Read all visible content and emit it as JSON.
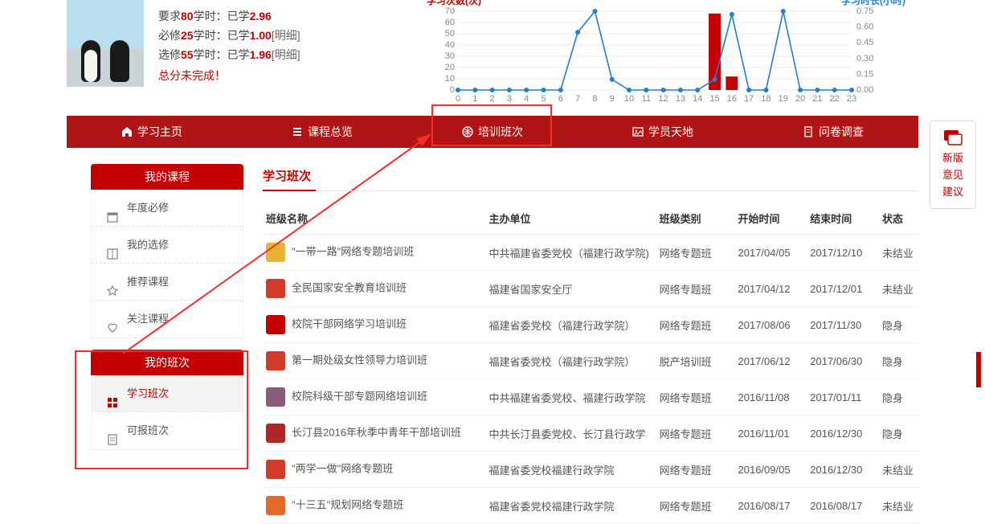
{
  "stats": {
    "line1_pre": "要求",
    "line1_num": "80",
    "line1_mid": "学时：已学",
    "line1_val": "2.96",
    "line2_pre": "必修",
    "line2_num": "25",
    "line2_mid": "学时：已学",
    "line2_val": "1.00",
    "line2_detail": "[明细]",
    "line3_pre": "选修",
    "line3_num": "55",
    "line3_mid": "学时：已学",
    "line3_val": "1.96",
    "line3_detail": "[明细]",
    "warn": "总分未完成！"
  },
  "chart_left": {
    "title": "学习次数(次)",
    "ylim": [
      0,
      70
    ],
    "ystep": 10,
    "xlabels": [
      "0",
      "1",
      "2",
      "3",
      "4",
      "5",
      "6",
      "7",
      "8",
      "9",
      "10",
      "11",
      "12",
      "13",
      "14",
      "15",
      "16",
      "17",
      "18",
      "19",
      "20",
      "21",
      "22",
      "23"
    ],
    "bars": [
      0,
      0,
      0,
      0,
      0,
      0,
      0,
      0,
      0,
      0,
      0,
      0,
      0,
      0,
      0,
      68,
      12,
      0,
      0,
      0,
      0,
      0,
      0,
      0
    ],
    "bar_color": "#c40000",
    "grid_color": "#dcdcdc"
  },
  "chart_right": {
    "title": "学习时长(小时)",
    "ylim": [
      0,
      0.75
    ],
    "yticks": [
      0,
      0.15,
      0.3,
      0.45,
      0.6,
      0.75
    ],
    "line": [
      0,
      0,
      0,
      0,
      0,
      0,
      0,
      0.55,
      0.75,
      0.1,
      0,
      0,
      0,
      0,
      0,
      0.1,
      0.72,
      0,
      0,
      0.75,
      0,
      0,
      0,
      0
    ],
    "line_color": "#1f7ed6",
    "marker_size": 3
  },
  "nav": [
    {
      "label": "学习主页",
      "icon": "home"
    },
    {
      "label": "课程总览",
      "icon": "list"
    },
    {
      "label": "培训班次",
      "icon": "globe"
    },
    {
      "label": "学员天地",
      "icon": "pic"
    },
    {
      "label": "问卷调查",
      "icon": "doc"
    }
  ],
  "sidebar": {
    "g1_title": "我的课程",
    "g1_items": [
      {
        "label": "年度必修",
        "icon": "calendar"
      },
      {
        "label": "我的选修",
        "icon": "book"
      },
      {
        "label": "推荐课程",
        "icon": "star"
      },
      {
        "label": "关注课程",
        "icon": "heart"
      }
    ],
    "g2_title": "我的班次",
    "g2_items": [
      {
        "label": "学习班次",
        "icon": "grid",
        "active": true
      },
      {
        "label": "可报班次",
        "icon": "form"
      }
    ]
  },
  "section_title": "学习班次",
  "columns": [
    "班级名称",
    "主办单位",
    "班级类别",
    "开始时间",
    "结束时间",
    "状态"
  ],
  "rows": [
    {
      "ic": "#e8b335",
      "name": "\"一带一路\"网络专题培训班",
      "host": "中共福建省委党校（福建行政学院)",
      "cat": "网络专题班",
      "start": "2017/04/05",
      "end": "2017/12/10",
      "st": "未结业"
    },
    {
      "ic": "#d23a2a",
      "name": "全民国家安全教育培训班",
      "host": "福建省国家安全厅",
      "cat": "网络专题班",
      "start": "2017/04/12",
      "end": "2017/12/01",
      "st": "未结业"
    },
    {
      "ic": "#c40000",
      "name": "校院干部网络学习培训班",
      "host": "福建省委党校（福建行政学院）",
      "cat": "网络专题班",
      "start": "2017/08/06",
      "end": "2017/11/30",
      "st": "隐身"
    },
    {
      "ic": "#d23a2a",
      "name": "第一期处级女性领导力培训班",
      "host": "福建省委党校（福建行政学院）",
      "cat": "脱产培训班",
      "start": "2017/06/12",
      "end": "2017/06/30",
      "st": "隐身"
    },
    {
      "ic": "#8a5a7a",
      "name": "校院科级干部专题网络培训班",
      "host": "中共福建省委党校、福建行政学院",
      "cat": "网络专题班",
      "start": "2016/11/08",
      "end": "2017/01/11",
      "st": "隐身"
    },
    {
      "ic": "#b02525",
      "name": "长汀县2016年秋季中青年干部培训班",
      "host": "中共长汀县委党校、长汀县行政学",
      "cat": "网络专题班",
      "start": "2016/11/01",
      "end": "2016/12/30",
      "st": "隐身"
    },
    {
      "ic": "#d23a2a",
      "name": "\"两学一做\"网络专题班",
      "host": "福建省委党校福建行政学院",
      "cat": "网络专题班",
      "start": "2016/09/05",
      "end": "2016/12/30",
      "st": "未结业"
    },
    {
      "ic": "#e06a2a",
      "name": "\"十三五\"规划网络专题班",
      "host": "福建省委党校福建行政学院",
      "cat": "网络专题班",
      "start": "2016/08/17",
      "end": "2016/08/17",
      "st": "未结业"
    }
  ],
  "feedback": {
    "l1": "新版",
    "l2": "意见",
    "l3": "建议"
  }
}
